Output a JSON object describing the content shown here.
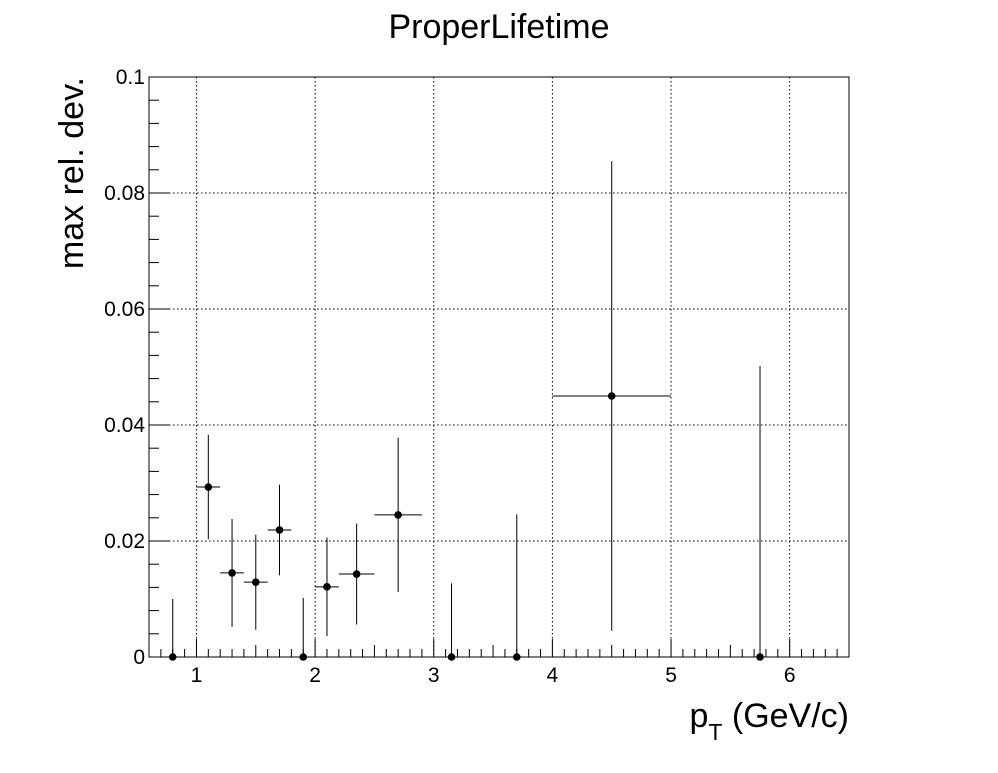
{
  "chart_data": {
    "type": "scatter",
    "title": "ProperLifetime",
    "ylabel": "max rel. dev.",
    "xlabel_main": "p",
    "xlabel_sub": "T",
    "xlabel_unit": " (GeV/c)",
    "xlim": [
      0.6,
      6.5
    ],
    "ylim": [
      0,
      0.1
    ],
    "grid": true,
    "x_ticks": [
      1,
      2,
      3,
      4,
      5,
      6
    ],
    "x_tick_labels": [
      "1",
      "2",
      "3",
      "4",
      "5",
      "6"
    ],
    "y_ticks": [
      0,
      0.02,
      0.04,
      0.06,
      0.08,
      0.1
    ],
    "y_tick_labels": [
      "0",
      "0.02",
      "0.04",
      "0.06",
      "0.08",
      "0.1"
    ],
    "points": [
      {
        "x": 0.8,
        "y": 0.0,
        "xerr": 0.0,
        "yerr": 0.01
      },
      {
        "x": 1.1,
        "y": 0.0293,
        "xerr": 0.1,
        "yerr": 0.009
      },
      {
        "x": 1.3,
        "y": 0.0145,
        "xerr": 0.1,
        "yerr": 0.0093
      },
      {
        "x": 1.5,
        "y": 0.0129,
        "xerr": 0.1,
        "yerr": 0.0082
      },
      {
        "x": 1.7,
        "y": 0.0219,
        "xerr": 0.1,
        "yerr": 0.0078
      },
      {
        "x": 1.9,
        "y": 0.0,
        "xerr": 0.0,
        "yerr": 0.0102
      },
      {
        "x": 2.1,
        "y": 0.0121,
        "xerr": 0.1,
        "yerr": 0.0085
      },
      {
        "x": 2.35,
        "y": 0.0143,
        "xerr": 0.15,
        "yerr": 0.0087
      },
      {
        "x": 2.7,
        "y": 0.0245,
        "xerr": 0.2,
        "yerr": 0.0133
      },
      {
        "x": 3.15,
        "y": 0.0,
        "xerr": 0.0,
        "yerr": 0.0127
      },
      {
        "x": 3.7,
        "y": 0.0,
        "xerr": 0.0,
        "yerr": 0.0246
      },
      {
        "x": 4.5,
        "y": 0.045,
        "xerr": 0.5,
        "yerr": 0.0405
      },
      {
        "x": 5.75,
        "y": 0.0,
        "xerr": 0.0,
        "yerr": 0.0502
      }
    ]
  }
}
